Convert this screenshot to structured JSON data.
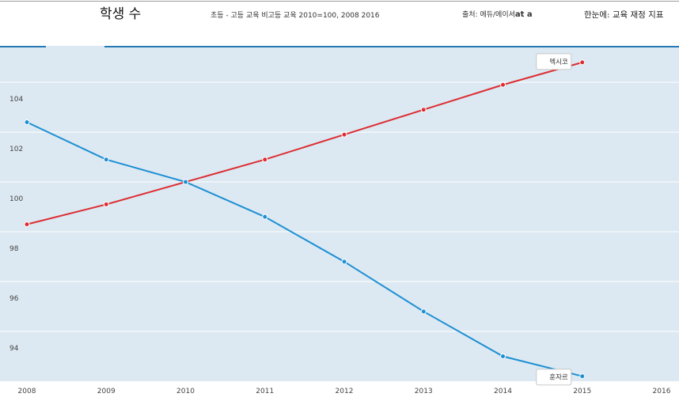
{
  "header": {
    "title": "학생 수",
    "subtitle": "초등 - 고등 교육 비고등 교육 2010=100, 2008 2016",
    "source_label": "출처: 에듀/에이셔",
    "source_bold": "at a",
    "glance": "한눈에: 교육 재정 지표"
  },
  "colors": {
    "background": "#dce9f2",
    "mexico": "#dd2d32",
    "switzerland": "#1d8fd3",
    "grid": "#ffffff"
  },
  "chart_data": {
    "type": "line",
    "x": [
      2008,
      2009,
      2010,
      2011,
      2012,
      2013,
      2014,
      2015
    ],
    "xticks": [
      "2008",
      "2009",
      "2010",
      "2011",
      "2012",
      "2013",
      "2014",
      "2015",
      "2016"
    ],
    "yticks": [
      "94",
      "96",
      "98",
      "100",
      "102",
      "104"
    ],
    "xlim": [
      2008,
      2016
    ],
    "ylim": [
      92.0,
      105.4
    ],
    "grid": true,
    "series": [
      {
        "name": "멕시코",
        "color": "#dd2d32",
        "values": [
          98.3,
          99.1,
          100.0,
          100.9,
          101.9,
          102.9,
          103.9,
          104.8
        ]
      },
      {
        "name": "훈자르",
        "color": "#1d8fd3",
        "values": [
          102.4,
          100.9,
          100.0,
          98.6,
          96.8,
          94.8,
          93.0,
          92.2
        ]
      }
    ]
  }
}
